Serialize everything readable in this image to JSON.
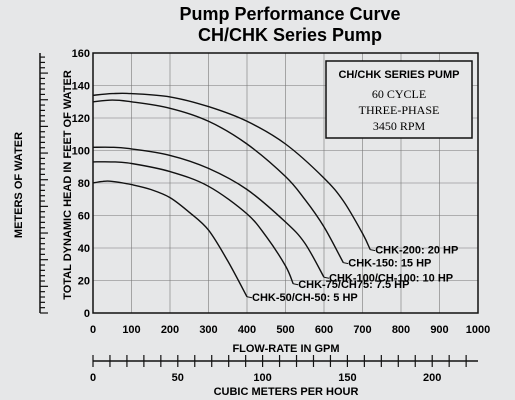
{
  "chart_data": {
    "type": "line",
    "title": "Pump Performance Curve",
    "subtitle": "CH/CHK Series Pump",
    "xlabel": "FLOW-RATE IN GPM",
    "ylabel": "TOTAL DYNAMIC HEAD IN FEET OF WATER",
    "y2label": "METERS OF WATER",
    "x2label": "CUBIC METERS PER HOUR",
    "xlim": [
      0,
      1000
    ],
    "ylim": [
      0,
      160
    ],
    "x2lim": [
      0,
      227
    ],
    "xticks": [
      0,
      100,
      200,
      300,
      400,
      500,
      600,
      700,
      800,
      900,
      1000
    ],
    "yticks": [
      0,
      20,
      40,
      60,
      80,
      100,
      120,
      140,
      160
    ],
    "x2ticks": [
      0,
      50,
      100,
      150,
      200
    ],
    "info_box": {
      "heading": "CH/CHK SERIES PUMP",
      "lines": [
        "60 CYCLE",
        "THREE-PHASE",
        "3450 RPM"
      ]
    },
    "series": [
      {
        "name": "CHK-200: 20 HP",
        "x": [
          0,
          50,
          100,
          200,
          300,
          400,
          500,
          600,
          650,
          700,
          720
        ],
        "y": [
          134,
          135,
          135,
          133,
          127,
          118,
          104,
          83,
          69,
          49,
          39
        ]
      },
      {
        "name": "CHK-150: 15 HP",
        "x": [
          0,
          50,
          100,
          200,
          300,
          400,
          500,
          550,
          600,
          650
        ],
        "y": [
          130,
          131,
          130,
          126,
          118,
          104,
          84,
          70,
          53,
          31
        ]
      },
      {
        "name": "CHK-100/CH-100: 10 HP",
        "x": [
          0,
          50,
          100,
          200,
          300,
          400,
          500,
          550,
          600
        ],
        "y": [
          102,
          102,
          101,
          97,
          89,
          76,
          56,
          43,
          22
        ]
      },
      {
        "name": "CHK-75/CH75: 7.5 HP",
        "x": [
          0,
          50,
          100,
          200,
          300,
          400,
          450,
          500,
          520
        ],
        "y": [
          93,
          93,
          92,
          87,
          78,
          61,
          47,
          29,
          18
        ]
      },
      {
        "name": "CHK-50/CH-50: 5 HP",
        "x": [
          0,
          25,
          50,
          100,
          150,
          200,
          250,
          300,
          350,
          400
        ],
        "y": [
          80,
          81,
          81,
          79,
          76,
          71,
          62,
          51,
          32,
          10
        ]
      }
    ]
  }
}
